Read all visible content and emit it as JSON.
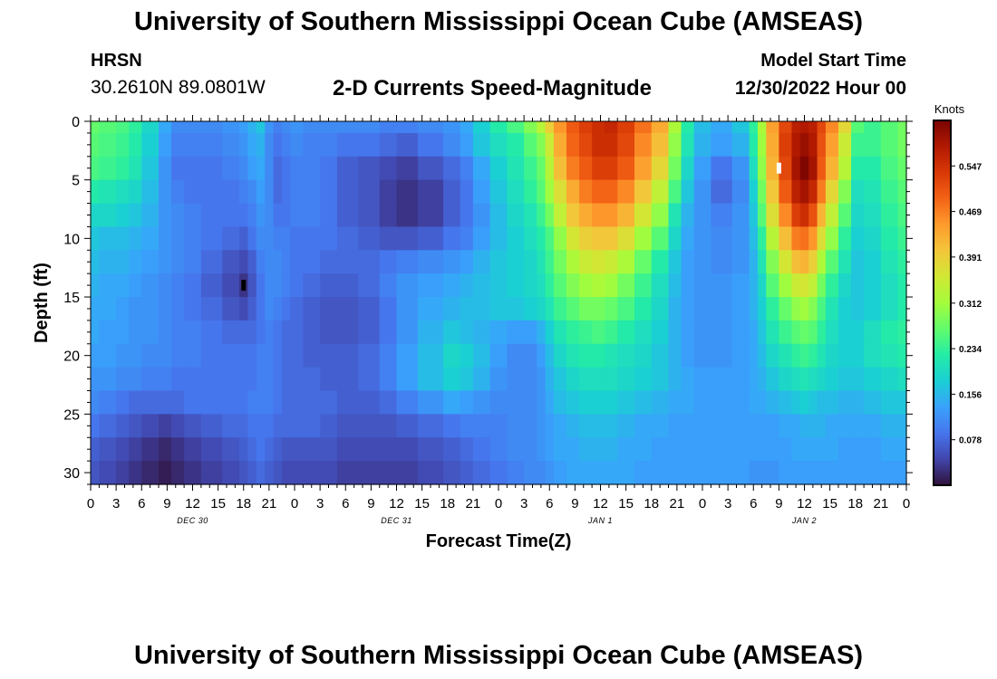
{
  "header": {
    "title": "University of Southern Mississippi Ocean Cube (AMSEAS)",
    "station": "HRSN",
    "coordinates": "30.2610N  89.0801W",
    "plot_title": "2-D Currents Speed-Magnitude",
    "model_start_label": "Model Start Time",
    "model_start_value": "12/30/2022 Hour 00"
  },
  "footer": {
    "title": "University of Southern Mississippi Ocean Cube (AMSEAS)"
  },
  "chart_data": {
    "type": "heatmap",
    "title": "2-D Currents Speed-Magnitude",
    "xlabel": "Forecast Time(Z)",
    "ylabel": "Depth (ft)",
    "colorbar_label": "Knots",
    "x_tick_labels": [
      "0",
      "3",
      "6",
      "9",
      "12",
      "15",
      "18",
      "21",
      "0",
      "3",
      "6",
      "9",
      "12",
      "15",
      "18",
      "21",
      "0",
      "3",
      "6",
      "9",
      "12",
      "15",
      "18",
      "21",
      "0",
      "3",
      "6",
      "9",
      "12",
      "15",
      "18",
      "21",
      "0"
    ],
    "x_hours": [
      0,
      3,
      6,
      9,
      12,
      15,
      18,
      21,
      24,
      27,
      30,
      33,
      36,
      39,
      42,
      45,
      48,
      51,
      54,
      57,
      60,
      63,
      66,
      69,
      72,
      75,
      78,
      81,
      84,
      87,
      90,
      93,
      96
    ],
    "date_labels": [
      {
        "label": "DEC 30",
        "hour": 12
      },
      {
        "label": "DEC 31",
        "hour": 36
      },
      {
        "label": "JAN 1",
        "hour": 60
      },
      {
        "label": "JAN 2",
        "hour": 84
      }
    ],
    "y_ticks": [
      0,
      5,
      10,
      15,
      20,
      25,
      30
    ],
    "xlim": [
      0,
      96
    ],
    "ylim": [
      0,
      31
    ],
    "colorbar_ticks": [
      0.078,
      0.156,
      0.234,
      0.312,
      0.391,
      0.469,
      0.547
    ],
    "colorbar_range": [
      0,
      0.625
    ],
    "colormap": [
      "#30123b",
      "#4145ab",
      "#4675ed",
      "#39a2fc",
      "#1bcfd4",
      "#24eca6",
      "#61fc6c",
      "#a4fc3b",
      "#d1e834",
      "#f3c63a",
      "#fe9b2d",
      "#f36315",
      "#d93806",
      "#b11901",
      "#7a0402"
    ],
    "time_hours": [
      0,
      2,
      4,
      5,
      7,
      9,
      10,
      12,
      14,
      17,
      18,
      19,
      20,
      21,
      22,
      23,
      24,
      26,
      28,
      30,
      33,
      35,
      37,
      40,
      43,
      44,
      46,
      48,
      50,
      52,
      53,
      54,
      55,
      57,
      58,
      60,
      61,
      63,
      65,
      67,
      69,
      70,
      72,
      74,
      77,
      78,
      79,
      80,
      82,
      83,
      84,
      85,
      86,
      87,
      89,
      90,
      92,
      94,
      96
    ],
    "depths_ft": [
      0,
      2,
      4,
      6,
      8,
      10,
      12,
      14,
      16,
      18,
      20,
      22,
      24,
      26,
      28,
      30,
      31
    ],
    "speed_knots": [
      [
        0.27,
        0.26,
        0.25,
        0.23,
        0.19,
        0.14,
        0.11,
        0.11,
        0.11,
        0.12,
        0.13,
        0.15,
        0.17,
        0.12,
        0.1,
        0.11,
        0.12,
        0.11,
        0.11,
        0.11,
        0.11,
        0.1,
        0.1,
        0.11,
        0.12,
        0.14,
        0.18,
        0.22,
        0.25,
        0.29,
        0.33,
        0.39,
        0.45,
        0.5,
        0.53,
        0.55,
        0.56,
        0.53,
        0.48,
        0.43,
        0.32,
        0.22,
        0.16,
        0.14,
        0.17,
        0.23,
        0.32,
        0.44,
        0.52,
        0.57,
        0.58,
        0.57,
        0.52,
        0.46,
        0.38,
        0.26,
        0.24,
        0.26,
        0.28
      ],
      [
        0.26,
        0.25,
        0.24,
        0.22,
        0.18,
        0.13,
        0.1,
        0.1,
        0.1,
        0.11,
        0.12,
        0.14,
        0.15,
        0.11,
        0.09,
        0.1,
        0.11,
        0.1,
        0.1,
        0.09,
        0.09,
        0.08,
        0.07,
        0.09,
        0.11,
        0.13,
        0.17,
        0.2,
        0.22,
        0.26,
        0.29,
        0.35,
        0.43,
        0.49,
        0.52,
        0.55,
        0.55,
        0.52,
        0.46,
        0.41,
        0.3,
        0.21,
        0.15,
        0.13,
        0.15,
        0.22,
        0.31,
        0.43,
        0.53,
        0.58,
        0.6,
        0.58,
        0.51,
        0.44,
        0.35,
        0.24,
        0.24,
        0.26,
        0.28
      ],
      [
        0.25,
        0.24,
        0.23,
        0.21,
        0.17,
        0.12,
        0.09,
        0.09,
        0.09,
        0.1,
        0.11,
        0.13,
        0.14,
        0.11,
        0.08,
        0.09,
        0.1,
        0.1,
        0.09,
        0.07,
        0.06,
        0.05,
        0.04,
        0.06,
        0.08,
        0.1,
        0.14,
        0.18,
        0.21,
        0.24,
        0.27,
        0.33,
        0.41,
        0.47,
        0.5,
        0.53,
        0.53,
        0.5,
        0.44,
        0.38,
        0.28,
        0.19,
        0.13,
        0.09,
        0.12,
        0.2,
        0.3,
        0.42,
        0.52,
        0.59,
        0.62,
        0.59,
        0.5,
        0.42,
        0.33,
        0.22,
        0.22,
        0.25,
        0.27
      ],
      [
        0.22,
        0.21,
        0.2,
        0.19,
        0.16,
        0.12,
        0.1,
        0.09,
        0.09,
        0.09,
        0.1,
        0.11,
        0.13,
        0.11,
        0.08,
        0.09,
        0.1,
        0.1,
        0.09,
        0.07,
        0.06,
        0.04,
        0.03,
        0.04,
        0.07,
        0.09,
        0.13,
        0.17,
        0.2,
        0.23,
        0.26,
        0.31,
        0.37,
        0.43,
        0.47,
        0.49,
        0.49,
        0.46,
        0.4,
        0.34,
        0.25,
        0.17,
        0.12,
        0.08,
        0.11,
        0.18,
        0.28,
        0.4,
        0.5,
        0.57,
        0.59,
        0.56,
        0.47,
        0.38,
        0.29,
        0.2,
        0.21,
        0.24,
        0.26
      ],
      [
        0.19,
        0.19,
        0.18,
        0.17,
        0.15,
        0.12,
        0.11,
        0.1,
        0.09,
        0.09,
        0.09,
        0.1,
        0.12,
        0.11,
        0.09,
        0.09,
        0.1,
        0.1,
        0.09,
        0.07,
        0.06,
        0.04,
        0.03,
        0.04,
        0.07,
        0.09,
        0.12,
        0.16,
        0.19,
        0.21,
        0.24,
        0.28,
        0.34,
        0.4,
        0.43,
        0.45,
        0.45,
        0.42,
        0.36,
        0.3,
        0.21,
        0.15,
        0.12,
        0.1,
        0.12,
        0.17,
        0.26,
        0.37,
        0.46,
        0.53,
        0.55,
        0.51,
        0.42,
        0.34,
        0.26,
        0.19,
        0.2,
        0.23,
        0.25
      ],
      [
        0.17,
        0.16,
        0.16,
        0.15,
        0.14,
        0.12,
        0.11,
        0.1,
        0.09,
        0.08,
        0.07,
        0.09,
        0.11,
        0.11,
        0.1,
        0.1,
        0.09,
        0.09,
        0.09,
        0.08,
        0.07,
        0.06,
        0.06,
        0.07,
        0.09,
        0.1,
        0.13,
        0.16,
        0.18,
        0.2,
        0.22,
        0.25,
        0.3,
        0.36,
        0.39,
        0.4,
        0.4,
        0.37,
        0.31,
        0.26,
        0.19,
        0.14,
        0.12,
        0.11,
        0.12,
        0.16,
        0.23,
        0.33,
        0.41,
        0.47,
        0.48,
        0.45,
        0.37,
        0.3,
        0.23,
        0.18,
        0.19,
        0.22,
        0.24
      ],
      [
        0.16,
        0.15,
        0.15,
        0.14,
        0.13,
        0.12,
        0.11,
        0.1,
        0.08,
        0.06,
        0.05,
        0.07,
        0.1,
        0.11,
        0.11,
        0.1,
        0.09,
        0.09,
        0.08,
        0.08,
        0.08,
        0.09,
        0.1,
        0.11,
        0.12,
        0.13,
        0.15,
        0.17,
        0.18,
        0.19,
        0.21,
        0.24,
        0.28,
        0.32,
        0.35,
        0.36,
        0.35,
        0.32,
        0.27,
        0.22,
        0.17,
        0.13,
        0.12,
        0.11,
        0.12,
        0.15,
        0.21,
        0.29,
        0.36,
        0.41,
        0.42,
        0.39,
        0.32,
        0.26,
        0.21,
        0.17,
        0.18,
        0.21,
        0.23
      ],
      [
        0.15,
        0.14,
        0.14,
        0.13,
        0.12,
        0.11,
        0.1,
        0.09,
        0.07,
        0.05,
        0.03,
        0.06,
        0.09,
        0.11,
        0.11,
        0.1,
        0.09,
        0.08,
        0.07,
        0.07,
        0.08,
        0.1,
        0.12,
        0.13,
        0.14,
        0.15,
        0.16,
        0.17,
        0.18,
        0.19,
        0.2,
        0.23,
        0.26,
        0.29,
        0.31,
        0.32,
        0.31,
        0.28,
        0.24,
        0.2,
        0.16,
        0.13,
        0.12,
        0.12,
        0.13,
        0.15,
        0.19,
        0.26,
        0.31,
        0.35,
        0.36,
        0.34,
        0.28,
        0.23,
        0.19,
        0.17,
        0.18,
        0.2,
        0.22
      ],
      [
        0.14,
        0.14,
        0.13,
        0.12,
        0.12,
        0.11,
        0.1,
        0.09,
        0.08,
        0.06,
        0.05,
        0.07,
        0.09,
        0.11,
        0.1,
        0.09,
        0.08,
        0.07,
        0.06,
        0.06,
        0.07,
        0.09,
        0.12,
        0.14,
        0.15,
        0.16,
        0.16,
        0.17,
        0.17,
        0.18,
        0.19,
        0.21,
        0.24,
        0.26,
        0.28,
        0.28,
        0.27,
        0.25,
        0.22,
        0.19,
        0.15,
        0.13,
        0.12,
        0.12,
        0.13,
        0.15,
        0.18,
        0.23,
        0.27,
        0.3,
        0.31,
        0.29,
        0.25,
        0.21,
        0.18,
        0.17,
        0.18,
        0.2,
        0.22
      ],
      [
        0.14,
        0.13,
        0.13,
        0.12,
        0.12,
        0.11,
        0.1,
        0.1,
        0.09,
        0.08,
        0.08,
        0.08,
        0.09,
        0.1,
        0.09,
        0.08,
        0.08,
        0.07,
        0.06,
        0.06,
        0.07,
        0.09,
        0.12,
        0.15,
        0.17,
        0.16,
        0.15,
        0.14,
        0.13,
        0.13,
        0.15,
        0.18,
        0.21,
        0.23,
        0.24,
        0.25,
        0.24,
        0.22,
        0.2,
        0.18,
        0.15,
        0.13,
        0.12,
        0.12,
        0.13,
        0.14,
        0.17,
        0.21,
        0.24,
        0.26,
        0.27,
        0.26,
        0.23,
        0.2,
        0.18,
        0.18,
        0.2,
        0.22,
        0.23
      ],
      [
        0.13,
        0.13,
        0.12,
        0.12,
        0.11,
        0.11,
        0.1,
        0.1,
        0.09,
        0.09,
        0.09,
        0.09,
        0.1,
        0.1,
        0.09,
        0.08,
        0.08,
        0.07,
        0.07,
        0.07,
        0.08,
        0.1,
        0.13,
        0.16,
        0.19,
        0.18,
        0.16,
        0.13,
        0.11,
        0.11,
        0.13,
        0.16,
        0.19,
        0.21,
        0.22,
        0.22,
        0.21,
        0.2,
        0.19,
        0.17,
        0.15,
        0.13,
        0.12,
        0.12,
        0.13,
        0.14,
        0.16,
        0.19,
        0.21,
        0.23,
        0.24,
        0.23,
        0.21,
        0.19,
        0.18,
        0.18,
        0.2,
        0.21,
        0.22
      ],
      [
        0.12,
        0.12,
        0.11,
        0.11,
        0.1,
        0.1,
        0.09,
        0.09,
        0.09,
        0.09,
        0.09,
        0.09,
        0.1,
        0.1,
        0.09,
        0.08,
        0.08,
        0.08,
        0.07,
        0.07,
        0.08,
        0.1,
        0.13,
        0.16,
        0.18,
        0.17,
        0.15,
        0.12,
        0.11,
        0.11,
        0.12,
        0.15,
        0.17,
        0.19,
        0.2,
        0.2,
        0.2,
        0.19,
        0.18,
        0.17,
        0.15,
        0.14,
        0.13,
        0.13,
        0.13,
        0.14,
        0.15,
        0.17,
        0.19,
        0.2,
        0.21,
        0.2,
        0.19,
        0.18,
        0.17,
        0.17,
        0.18,
        0.19,
        0.2
      ],
      [
        0.11,
        0.1,
        0.09,
        0.08,
        0.08,
        0.08,
        0.08,
        0.09,
        0.09,
        0.09,
        0.09,
        0.1,
        0.1,
        0.1,
        0.09,
        0.08,
        0.08,
        0.08,
        0.08,
        0.07,
        0.07,
        0.08,
        0.1,
        0.12,
        0.14,
        0.13,
        0.12,
        0.11,
        0.11,
        0.11,
        0.12,
        0.14,
        0.16,
        0.17,
        0.18,
        0.18,
        0.18,
        0.17,
        0.16,
        0.15,
        0.14,
        0.14,
        0.13,
        0.13,
        0.13,
        0.14,
        0.14,
        0.15,
        0.16,
        0.17,
        0.18,
        0.17,
        0.16,
        0.16,
        0.15,
        0.15,
        0.16,
        0.17,
        0.17
      ],
      [
        0.09,
        0.08,
        0.07,
        0.06,
        0.05,
        0.04,
        0.05,
        0.06,
        0.07,
        0.08,
        0.08,
        0.09,
        0.09,
        0.09,
        0.08,
        0.08,
        0.08,
        0.08,
        0.07,
        0.06,
        0.06,
        0.06,
        0.07,
        0.08,
        0.09,
        0.1,
        0.1,
        0.1,
        0.11,
        0.11,
        0.12,
        0.13,
        0.14,
        0.15,
        0.16,
        0.16,
        0.16,
        0.15,
        0.14,
        0.14,
        0.13,
        0.13,
        0.13,
        0.13,
        0.13,
        0.13,
        0.13,
        0.13,
        0.14,
        0.14,
        0.15,
        0.15,
        0.15,
        0.14,
        0.14,
        0.14,
        0.14,
        0.15,
        0.15
      ],
      [
        0.07,
        0.06,
        0.05,
        0.04,
        0.03,
        0.02,
        0.03,
        0.04,
        0.05,
        0.06,
        0.07,
        0.08,
        0.09,
        0.08,
        0.07,
        0.06,
        0.06,
        0.06,
        0.06,
        0.05,
        0.05,
        0.05,
        0.05,
        0.06,
        0.07,
        0.08,
        0.09,
        0.1,
        0.11,
        0.11,
        0.12,
        0.13,
        0.14,
        0.14,
        0.15,
        0.15,
        0.15,
        0.14,
        0.14,
        0.13,
        0.13,
        0.13,
        0.13,
        0.13,
        0.13,
        0.13,
        0.13,
        0.13,
        0.13,
        0.14,
        0.14,
        0.14,
        0.14,
        0.14,
        0.13,
        0.13,
        0.13,
        0.14,
        0.14
      ],
      [
        0.06,
        0.05,
        0.04,
        0.03,
        0.02,
        0.01,
        0.02,
        0.03,
        0.04,
        0.05,
        0.06,
        0.07,
        0.08,
        0.07,
        0.06,
        0.05,
        0.05,
        0.05,
        0.05,
        0.04,
        0.04,
        0.04,
        0.04,
        0.05,
        0.06,
        0.07,
        0.08,
        0.09,
        0.1,
        0.11,
        0.11,
        0.12,
        0.13,
        0.14,
        0.14,
        0.14,
        0.14,
        0.14,
        0.13,
        0.13,
        0.13,
        0.13,
        0.13,
        0.13,
        0.13,
        0.12,
        0.12,
        0.12,
        0.13,
        0.13,
        0.13,
        0.13,
        0.13,
        0.13,
        0.13,
        0.13,
        0.13,
        0.13,
        0.13
      ],
      [
        0.06,
        0.05,
        0.04,
        0.03,
        0.02,
        0.01,
        0.02,
        0.03,
        0.04,
        0.05,
        0.06,
        0.07,
        0.08,
        0.07,
        0.06,
        0.05,
        0.05,
        0.05,
        0.05,
        0.04,
        0.04,
        0.04,
        0.04,
        0.05,
        0.06,
        0.07,
        0.08,
        0.09,
        0.1,
        0.11,
        0.11,
        0.12,
        0.13,
        0.14,
        0.14,
        0.14,
        0.14,
        0.14,
        0.13,
        0.13,
        0.13,
        0.13,
        0.13,
        0.13,
        0.13,
        0.12,
        0.12,
        0.12,
        0.13,
        0.13,
        0.13,
        0.13,
        0.13,
        0.13,
        0.13,
        0.13,
        0.13,
        0.13,
        0.13
      ]
    ],
    "markers": [
      {
        "hour": 18,
        "depth": 14,
        "color": "#000000"
      },
      {
        "hour": 81,
        "depth": 4,
        "color": "#ffffff"
      }
    ]
  }
}
